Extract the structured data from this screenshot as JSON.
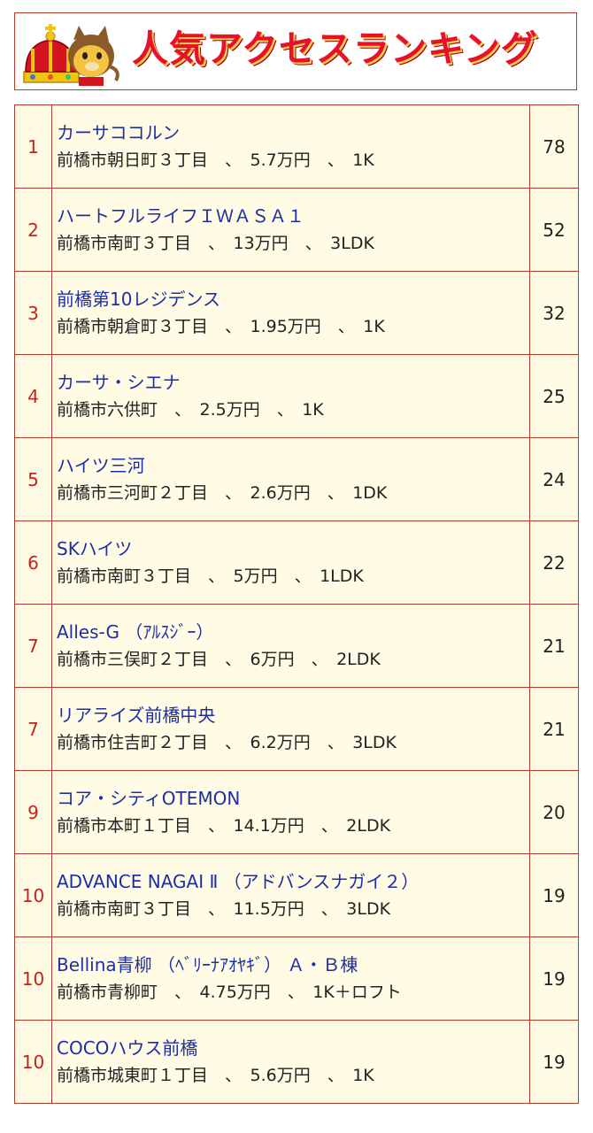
{
  "header": {
    "title": "人気アクセスランキング"
  },
  "rows": [
    {
      "rank": "1",
      "name": "カーサココルン",
      "detail": "前橋市朝日町３丁目　、　5.7万円　、　1K",
      "score": "78"
    },
    {
      "rank": "2",
      "name": "ハートフルライフＩＷＡＳＡ１",
      "detail": "前橋市南町３丁目　、　13万円　、　3LDK",
      "score": "52"
    },
    {
      "rank": "3",
      "name": "前橋第10レジデンス",
      "detail": "前橋市朝倉町３丁目　、　1.95万円　、　1K",
      "score": "32"
    },
    {
      "rank": "4",
      "name": "カーサ・シエナ",
      "detail": "前橋市六供町　、　2.5万円　、　1K",
      "score": "25"
    },
    {
      "rank": "5",
      "name": "ハイツ三河",
      "detail": "前橋市三河町２丁目　、　2.6万円　、　1DK",
      "score": "24"
    },
    {
      "rank": "6",
      "name": "SKハイツ",
      "detail": "前橋市南町３丁目　、　5万円　、　1LDK",
      "score": "22"
    },
    {
      "rank": "7",
      "name": "Alles-G （ｱﾙｽｼﾞｰ）",
      "detail": "前橋市三俣町２丁目　、　6万円　、　2LDK",
      "score": "21"
    },
    {
      "rank": "7",
      "name": "リアライズ前橋中央",
      "detail": "前橋市住吉町２丁目　、　6.2万円　、　3LDK",
      "score": "21"
    },
    {
      "rank": "9",
      "name": "コア・シティOTEMON",
      "detail": "前橋市本町１丁目　、　14.1万円　、　2LDK",
      "score": "20"
    },
    {
      "rank": "10",
      "name": "ADVANCE NAGAI Ⅱ （アドバンスナガイ２）",
      "detail": "前橋市南町３丁目　、　11.5万円　、　3LDK",
      "score": "19"
    },
    {
      "rank": "10",
      "name": "Bellina青柳 （ﾍﾞﾘｰﾅｱｵﾔｷﾞ） Ａ・Ｂ棟",
      "detail": "前橋市青柳町　、　4.75万円　、　1K＋ロフト",
      "score": "19"
    },
    {
      "rank": "10",
      "name": "COCOハウス前橋",
      "detail": "前橋市城東町１丁目　、　5.6万円　、　1K",
      "score": "19"
    }
  ],
  "colors": {
    "title_red": "#e8102a",
    "border": "#b33a2e",
    "row_bg": "#fffbe4",
    "link_blue": "#1c2fa5",
    "rank_red": "#c8211b"
  }
}
